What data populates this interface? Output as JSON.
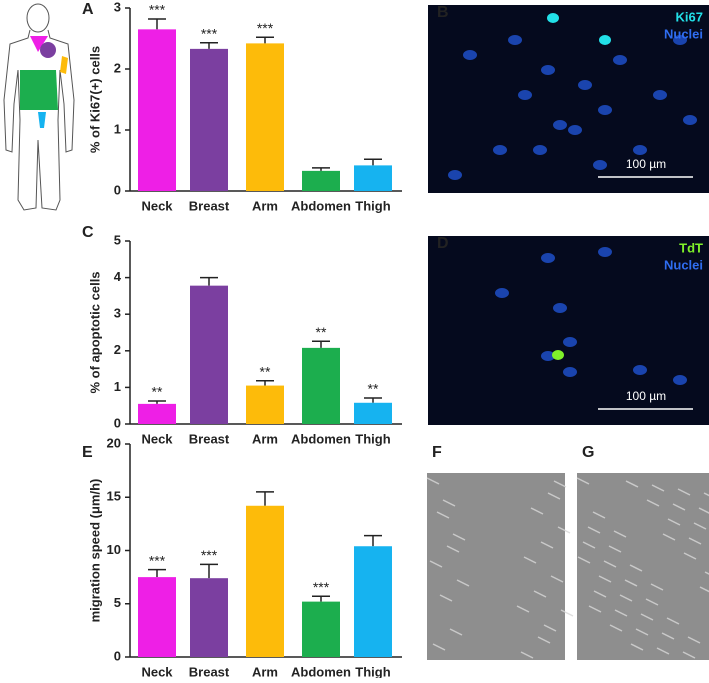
{
  "chart_data": [
    {
      "type": "bar",
      "label": "A",
      "ylabel": "% of Ki67(+) cells",
      "categories": [
        "Neck",
        "Breast",
        "Arm",
        "Abdomen",
        "Thigh"
      ],
      "values": [
        2.65,
        2.33,
        2.42,
        0.33,
        0.42
      ],
      "errors": [
        0.17,
        0.1,
        0.1,
        0.05,
        0.1
      ],
      "annotations": [
        "***",
        "***",
        "***",
        null,
        null
      ],
      "colors": [
        "#ee1fe6",
        "#7b3fa0",
        "#fdbb0a",
        "#1cae4e",
        "#16b3f0"
      ],
      "ylim": [
        0,
        3
      ],
      "yticks": [
        0,
        1,
        2,
        3
      ]
    },
    {
      "type": "bar",
      "label": "C",
      "ylabel": "% of apoptotic cells",
      "categories": [
        "Neck",
        "Breast",
        "Arm",
        "Abdomen",
        "Thigh"
      ],
      "values": [
        0.55,
        3.78,
        1.05,
        2.08,
        0.58
      ],
      "errors": [
        0.08,
        0.22,
        0.13,
        0.18,
        0.13
      ],
      "annotations": [
        "**",
        null,
        "**",
        "**",
        "**"
      ],
      "colors": [
        "#ee1fe6",
        "#7b3fa0",
        "#fdbb0a",
        "#1cae4e",
        "#16b3f0"
      ],
      "ylim": [
        0,
        5
      ],
      "yticks": [
        0,
        1,
        2,
        3,
        4,
        5
      ]
    },
    {
      "type": "bar",
      "label": "E",
      "ylabel": "migration speed (μm/h)",
      "categories": [
        "Neck",
        "Breast",
        "Arm",
        "Abdomen",
        "Thigh"
      ],
      "values": [
        7.5,
        7.4,
        14.2,
        5.2,
        10.4
      ],
      "errors": [
        0.7,
        1.3,
        1.3,
        0.5,
        1.0
      ],
      "annotations": [
        "***",
        "***",
        null,
        "***",
        null
      ],
      "colors": [
        "#ee1fe6",
        "#7b3fa0",
        "#fdbb0a",
        "#1cae4e",
        "#16b3f0"
      ],
      "ylim": [
        0,
        20
      ],
      "yticks": [
        0,
        5,
        10,
        15,
        20
      ]
    }
  ],
  "images": [
    {
      "label": "B",
      "stain": "Ki67",
      "nuclei": "Nuclei",
      "scale": "100 µm"
    },
    {
      "label": "D",
      "stain": "TdT",
      "nuclei": "Nuclei",
      "scale": "100 µm"
    },
    {
      "label": "F"
    },
    {
      "label": "G"
    }
  ]
}
